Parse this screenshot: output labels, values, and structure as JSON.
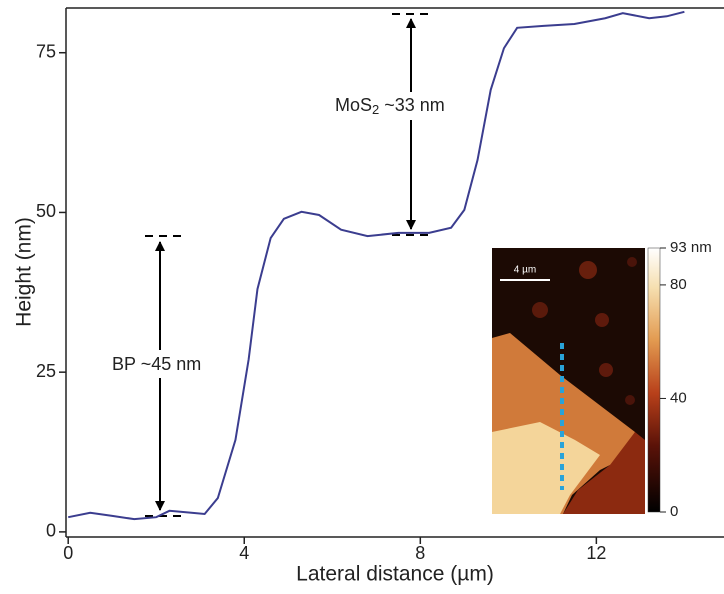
{
  "chart_data": {
    "type": "line",
    "x_label": "Lateral distance (µm)",
    "y_label": "Height (nm)",
    "x": [
      0,
      0.5,
      1,
      1.5,
      2,
      2.3,
      2.8,
      3.1,
      3.4,
      3.8,
      4.1,
      4.3,
      4.6,
      4.9,
      5.3,
      5.7,
      6.2,
      6.8,
      7.5,
      8.2,
      8.7,
      9.0,
      9.3,
      9.6,
      9.9,
      10.2,
      10.8,
      11.5,
      12.2,
      12.6,
      13.2,
      13.6,
      14.0
    ],
    "series": [
      {
        "color": "#3b3d8f",
        "values": [
          2.3,
          3,
          2.5,
          2,
          2.3,
          3.3,
          3,
          2.8,
          5.3,
          14.4,
          27,
          38,
          46,
          49,
          50.1,
          49.6,
          47.3,
          46.3,
          46.8,
          46.8,
          47.6,
          50.4,
          58.2,
          69.2,
          75.7,
          78.9,
          79.2,
          79.5,
          80.4,
          81.2,
          80.4,
          80.7,
          81.4
        ]
      }
    ],
    "xlim": [
      -0.05,
      14.9
    ],
    "xticks": [
      0,
      4,
      8,
      12
    ],
    "ylim": [
      -0.8,
      82
    ],
    "yticks": [
      0,
      25,
      50,
      75
    ],
    "annotations": [
      {
        "text": "BP ~45 nm"
      },
      {
        "parts": [
          "MoS",
          "2",
          " ~33 nm"
        ]
      }
    ],
    "inset": {
      "scale_bar": "4 µm",
      "colorbar_lim": [
        0,
        93
      ],
      "colorbar_ticks": [
        0,
        40,
        80,
        {
          "value": 93,
          "label": "93 nm"
        }
      ]
    }
  }
}
